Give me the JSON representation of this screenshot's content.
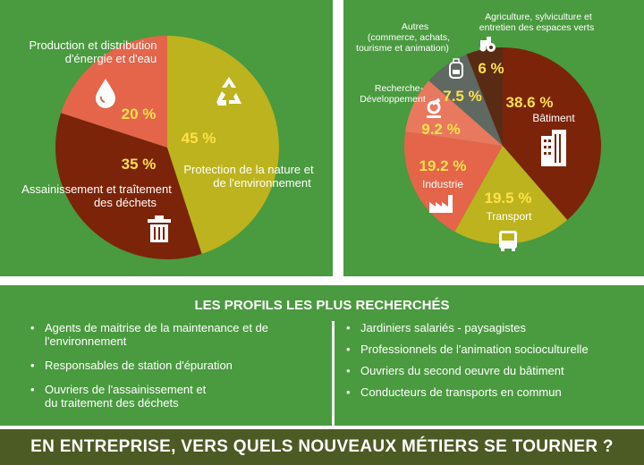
{
  "colors": {
    "panel_green": "#4a9a3f",
    "footer_olive": "#4c5a24",
    "value_yellow": "#ffe14a",
    "slice_orange": "#e4654a",
    "slice_darkred": "#7b2409",
    "slice_olive": "#bcb31e",
    "slice_salmon": "#e8795e",
    "slice_gray": "#606862",
    "slice_brown": "#5a2b14"
  },
  "chart_data": [
    {
      "type": "pie",
      "title": "",
      "slices": [
        {
          "label": "Production et distribution d'énergie et d'eau",
          "value": 20,
          "value_label": "20 %",
          "color": "#e4654a",
          "icon": "water-drop-icon"
        },
        {
          "label": "Assainissement et traîtement des déchets",
          "value": 35,
          "value_label": "35 %",
          "color": "#7b2409",
          "icon": "trash-can-icon"
        },
        {
          "label": "Protection de la nature et de l'environnement",
          "value": 45,
          "value_label": "45 %",
          "color": "#bcb31e",
          "icon": "recycle-icon"
        }
      ]
    },
    {
      "type": "pie",
      "title": "",
      "slices": [
        {
          "label": "Bâtiment",
          "value": 38.6,
          "value_label": "38.6 %",
          "color": "#7b2409",
          "icon": "building-icon"
        },
        {
          "label": "Transport",
          "value": 19.5,
          "value_label": "19.5 %",
          "color": "#bcb31e",
          "icon": "bus-icon"
        },
        {
          "label": "Industrie",
          "value": 19.2,
          "value_label": "19.2 %",
          "color": "#e4654a",
          "icon": "factory-icon"
        },
        {
          "label": "Recherche-Développement",
          "value": 9.2,
          "value_label": "9.2 %",
          "color": "#e8795e",
          "icon": "microscope-icon"
        },
        {
          "label": "Autres (commerce, achats, tourisme et animation)",
          "value": 7.5,
          "value_label": "7.5 %",
          "color": "#606862",
          "icon": "backpack-icon"
        },
        {
          "label": "Agriculture, sylviculture et entretien des espaces verts",
          "value": 6,
          "value_label": "6 %",
          "color": "#5a2b14",
          "icon": "tractor-icon"
        }
      ]
    }
  ],
  "left_chart": {
    "label_energy": [
      "Production et distribution",
      "d'énergie et d'eau"
    ],
    "label_sanitation": [
      "Assainissement et traîtement",
      "des déchets"
    ],
    "label_protection": [
      "Protection de la nature et",
      "de l'environnement"
    ]
  },
  "right_chart": {
    "label_batiment": "Bâtiment",
    "label_transport": "Transport",
    "label_industrie": "Industrie",
    "label_recherche": [
      "Recherche-",
      "Développement"
    ],
    "label_autres": [
      "Autres",
      "(commerce, achats,",
      "tourisme et animation)"
    ],
    "label_agriculture": [
      "Agriculture, sylviculture et",
      "entretien des espaces verts"
    ]
  },
  "profiles": {
    "title": "LES PROFILS LES PLUS RECHERCHÉS",
    "left_items": [
      [
        "Agents de maitrise de la maintenance et de",
        "l'environnement"
      ],
      [
        "Responsables de station d'épuration"
      ],
      [
        "Ouvriers de l'assainissement et",
        "du traitement des déchets"
      ]
    ],
    "right_items": [
      "Jardiniers salariés - paysagistes",
      "Professionnels de l'animation socioculturelle",
      "Ouvriers du second oeuvre du bâtiment",
      "Conducteurs de transports en commun"
    ]
  },
  "footer": {
    "text": "EN ENTREPRISE, VERS QUELS NOUVEAUX MÉTIERS SE TOURNER ?"
  }
}
